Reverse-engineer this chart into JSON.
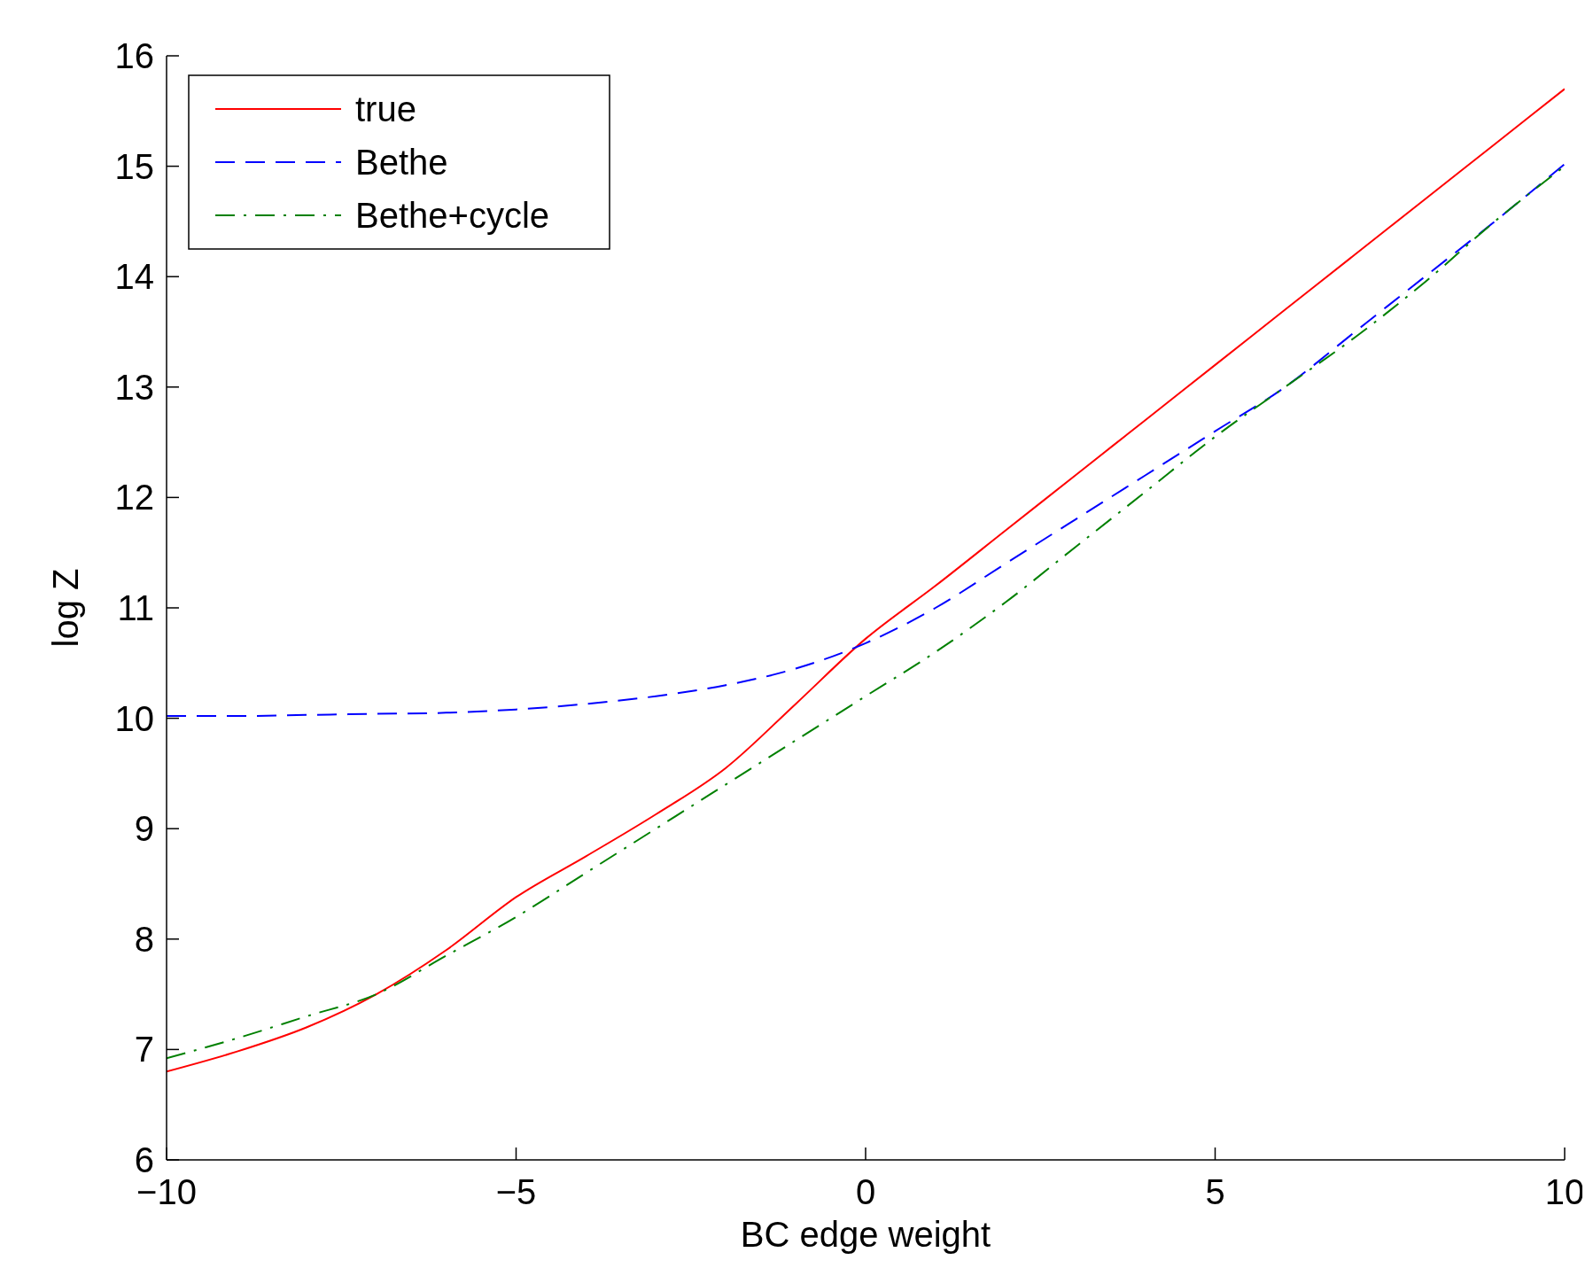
{
  "chart_data": {
    "type": "line",
    "xlabel": "BC edge weight",
    "ylabel": "log Z",
    "x": [
      -10,
      -9,
      -8,
      -7,
      -6,
      -5,
      -4,
      -3,
      -2,
      -1,
      0,
      1,
      2,
      3,
      4,
      5,
      6,
      7,
      8,
      9,
      10
    ],
    "series": [
      {
        "name": "true",
        "color": "#ff0000",
        "line_style": "solid",
        "values": [
          6.8,
          6.98,
          7.2,
          7.5,
          7.9,
          8.38,
          8.75,
          9.13,
          9.55,
          10.13,
          10.72,
          11.2,
          11.7,
          12.2,
          12.7,
          13.2,
          13.7,
          14.2,
          14.7,
          15.2,
          15.7
        ]
      },
      {
        "name": "Bethe",
        "color": "#0000ff",
        "line_style": "dashed",
        "values": [
          10.02,
          10.02,
          10.03,
          10.04,
          10.05,
          10.08,
          10.13,
          10.2,
          10.3,
          10.45,
          10.68,
          11.0,
          11.4,
          11.8,
          12.2,
          12.6,
          13.0,
          13.5,
          14.0,
          14.5,
          15.02
        ]
      },
      {
        "name": "Bethe+cycle",
        "color": "#008000",
        "line_style": "dashdot",
        "values": [
          6.92,
          7.1,
          7.3,
          7.5,
          7.85,
          8.2,
          8.6,
          9.0,
          9.4,
          9.8,
          10.2,
          10.6,
          11.05,
          11.55,
          12.05,
          12.55,
          13.0,
          13.45,
          13.95,
          14.5,
          15.0
        ]
      }
    ],
    "xlim": [
      -10,
      10
    ],
    "xticks": [
      {
        "value": -10,
        "label": "−10"
      },
      {
        "value": -5,
        "label": "−5"
      },
      0,
      5,
      10
    ],
    "ylim": [
      6,
      16
    ],
    "yticks": [
      6,
      7,
      8,
      9,
      10,
      11,
      12,
      13,
      14,
      15,
      16
    ],
    "legend": "top left",
    "grid": false
  }
}
